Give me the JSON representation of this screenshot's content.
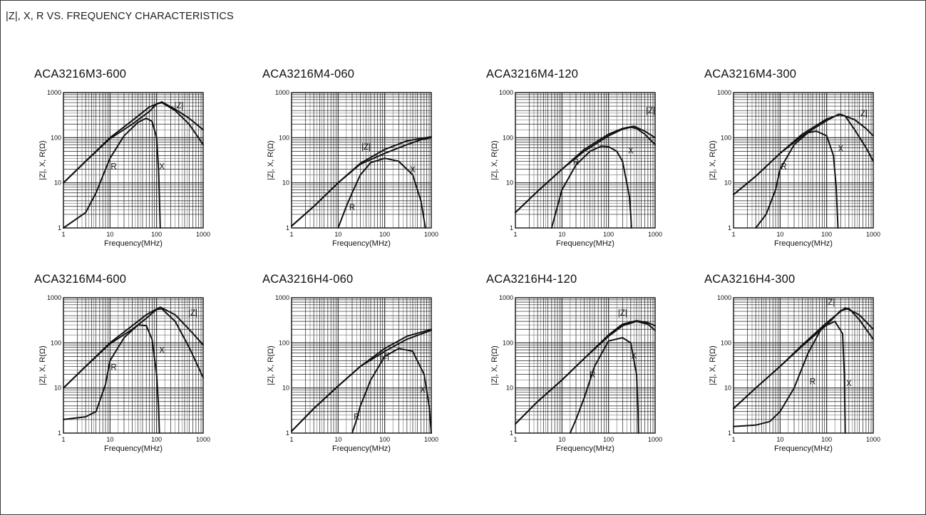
{
  "page": {
    "title": "|Z|, X, R VS. FREQUENCY CHARACTERISTICS"
  },
  "chart_data": [
    {
      "type": "line",
      "title": "ACA3216M3-600",
      "xlabel": "Frequency(MHz)",
      "ylabel": "|Z|, X, R(Ω)",
      "xscale": "log",
      "yscale": "log",
      "xlim": [
        1,
        1000
      ],
      "ylim": [
        1,
        1000
      ],
      "xticks": [
        "1",
        "10",
        "100",
        "1000"
      ],
      "yticks": [
        "1",
        "10",
        "100",
        "1000"
      ],
      "grid": true,
      "series": [
        {
          "name": "|Z|",
          "x": [
            1,
            3,
            10,
            30,
            70,
            130,
            250,
            500,
            1000
          ],
          "y": [
            10,
            30,
            100,
            240,
            480,
            620,
            430,
            270,
            150
          ]
        },
        {
          "name": "X",
          "x": [
            1,
            3,
            10,
            30,
            70,
            100,
            130,
            250,
            500,
            1000
          ],
          "y": [
            10,
            30,
            95,
            200,
            380,
            560,
            600,
            400,
            200,
            70
          ]
        },
        {
          "name": "R",
          "x": [
            1,
            3,
            5,
            10,
            20,
            40,
            60,
            80,
            100,
            110,
            115,
            120
          ],
          "y": [
            1,
            2.2,
            6,
            35,
            110,
            220,
            270,
            230,
            100,
            20,
            5,
            1
          ]
        }
      ],
      "annotations": [
        {
          "text": "|Z|",
          "x": 300,
          "y": 450
        },
        {
          "text": "R",
          "x": 12,
          "y": 20
        },
        {
          "text": "X",
          "x": 130,
          "y": 20
        }
      ]
    },
    {
      "type": "line",
      "title": "ACA3216M4-060",
      "xlabel": "Frequency(MHz)",
      "ylabel": "|Z|, X, R(Ω)",
      "xscale": "log",
      "yscale": "log",
      "xlim": [
        1,
        1000
      ],
      "ylim": [
        1,
        1000
      ],
      "xticks": [
        "1",
        "10",
        "100",
        "1000"
      ],
      "yticks": [
        "1",
        "10",
        "100",
        "1000"
      ],
      "grid": true,
      "series": [
        {
          "name": "|Z|",
          "x": [
            1,
            3,
            10,
            30,
            100,
            300,
            1000
          ],
          "y": [
            1.1,
            3,
            10,
            27,
            55,
            85,
            105
          ]
        },
        {
          "name": "X",
          "x": [
            1,
            3,
            10,
            30,
            100,
            300,
            600,
            1000
          ],
          "y": [
            1.1,
            3,
            10,
            26,
            45,
            70,
            90,
            100
          ]
        },
        {
          "name": "R",
          "x": [
            10,
            15,
            20,
            30,
            50,
            100,
            200,
            400,
            600,
            700,
            750
          ],
          "y": [
            1,
            3,
            6,
            15,
            28,
            35,
            30,
            15,
            4,
            1.5,
            1
          ]
        }
      ],
      "annotations": [
        {
          "text": "|Z|",
          "x": 40,
          "y": 55
        },
        {
          "text": "R",
          "x": 20,
          "y": 2.5
        },
        {
          "text": "X",
          "x": 400,
          "y": 17
        }
      ]
    },
    {
      "type": "line",
      "title": "ACA3216M4-120",
      "xlabel": "Frequency(MHz)",
      "ylabel": "|Z|, X, R(Ω)",
      "xscale": "log",
      "yscale": "log",
      "xlim": [
        1,
        1000
      ],
      "ylim": [
        1,
        1000
      ],
      "xticks": [
        "1",
        "10",
        "100",
        "1000"
      ],
      "yticks": [
        "1",
        "10",
        "100",
        "1000"
      ],
      "grid": true,
      "series": [
        {
          "name": "|Z|",
          "x": [
            1,
            3,
            10,
            30,
            100,
            200,
            350,
            600,
            1000
          ],
          "y": [
            2.2,
            6.5,
            20,
            55,
            120,
            160,
            180,
            140,
            100
          ]
        },
        {
          "name": "X",
          "x": [
            1,
            3,
            10,
            30,
            100,
            200,
            300,
            400,
            600,
            1000
          ],
          "y": [
            2.2,
            6.5,
            20,
            50,
            110,
            155,
            170,
            160,
            120,
            70
          ]
        },
        {
          "name": "R",
          "x": [
            6,
            8,
            10,
            20,
            40,
            70,
            100,
            150,
            200,
            280,
            300,
            310
          ],
          "y": [
            1,
            3,
            7,
            25,
            50,
            65,
            63,
            50,
            30,
            5,
            2,
            1
          ]
        }
      ],
      "annotations": [
        {
          "text": "|Z|",
          "x": 800,
          "y": 350
        },
        {
          "text": "R",
          "x": 20,
          "y": 25
        },
        {
          "text": "X",
          "x": 300,
          "y": 45
        }
      ]
    },
    {
      "type": "line",
      "title": "ACA3216M4-300",
      "xlabel": "Frequency(MHz)",
      "ylabel": "|Z|, X, R(Ω)",
      "xscale": "log",
      "yscale": "log",
      "xlim": [
        1,
        1000
      ],
      "ylim": [
        1,
        1000
      ],
      "xticks": [
        "1",
        "10",
        "100",
        "1000"
      ],
      "yticks": [
        "1",
        "10",
        "100",
        "1000"
      ],
      "grid": true,
      "series": [
        {
          "name": "|Z|",
          "x": [
            1,
            3,
            10,
            30,
            100,
            200,
            400,
            700,
            1000
          ],
          "y": [
            5.5,
            14,
            45,
            120,
            260,
            330,
            250,
            160,
            110
          ]
        },
        {
          "name": "X",
          "x": [
            1,
            3,
            10,
            30,
            100,
            180,
            250,
            400,
            700,
            1000
          ],
          "y": [
            5.5,
            14,
            45,
            110,
            240,
            330,
            300,
            150,
            60,
            30
          ]
        },
        {
          "name": "R",
          "x": [
            3,
            5,
            8,
            10,
            20,
            40,
            60,
            100,
            140,
            160,
            170,
            175
          ],
          "y": [
            1,
            2,
            7,
            20,
            70,
            130,
            140,
            110,
            40,
            8,
            2,
            1
          ]
        }
      ],
      "annotations": [
        {
          "text": "|Z|",
          "x": 600,
          "y": 300
        },
        {
          "text": "R",
          "x": 12,
          "y": 20
        },
        {
          "text": "X",
          "x": 200,
          "y": 50
        }
      ]
    },
    {
      "type": "line",
      "title": "ACA3216M4-600",
      "xlabel": "Frequency(MHz)",
      "ylabel": "|Z|, X, R(Ω)",
      "xscale": "log",
      "yscale": "log",
      "xlim": [
        1,
        1000
      ],
      "ylim": [
        1,
        1000
      ],
      "xticks": [
        "1",
        "10",
        "100",
        "1000"
      ],
      "yticks": [
        "1",
        "10",
        "100",
        "1000"
      ],
      "grid": true,
      "series": [
        {
          "name": "|Z|",
          "x": [
            1,
            3,
            10,
            30,
            60,
            120,
            250,
            500,
            1000
          ],
          "y": [
            10,
            30,
            100,
            240,
            420,
            620,
            420,
            200,
            90
          ]
        },
        {
          "name": "X",
          "x": [
            1,
            3,
            10,
            30,
            60,
            100,
            130,
            250,
            500,
            1000
          ],
          "y": [
            10,
            30,
            95,
            200,
            350,
            550,
            570,
            300,
            80,
            17
          ]
        },
        {
          "name": "R",
          "x": [
            1,
            3,
            5,
            8,
            10,
            20,
            40,
            60,
            80,
            100,
            110,
            115
          ],
          "y": [
            2,
            2.3,
            3,
            12,
            40,
            130,
            250,
            240,
            120,
            20,
            4,
            1
          ]
        }
      ],
      "annotations": [
        {
          "text": "|Z|",
          "x": 600,
          "y": 400
        },
        {
          "text": "R",
          "x": 12,
          "y": 25
        },
        {
          "text": "X",
          "x": 130,
          "y": 60
        }
      ]
    },
    {
      "type": "line",
      "title": "ACA3216H4-060",
      "xlabel": "Frequency(MHz)",
      "ylabel": "|Z|, X, R(Ω)",
      "xscale": "log",
      "yscale": "log",
      "xlim": [
        1,
        1000
      ],
      "ylim": [
        1,
        1000
      ],
      "xticks": [
        "1",
        "10",
        "100",
        "1000"
      ],
      "yticks": [
        "1",
        "10",
        "100",
        "1000"
      ],
      "grid": true,
      "series": [
        {
          "name": "|Z|",
          "x": [
            1,
            3,
            10,
            30,
            100,
            300,
            1000
          ],
          "y": [
            1.1,
            3.5,
            11,
            30,
            75,
            140,
            200
          ]
        },
        {
          "name": "X",
          "x": [
            1,
            3,
            10,
            30,
            100,
            300,
            1000
          ],
          "y": [
            1.1,
            3.5,
            11,
            30,
            65,
            120,
            190
          ]
        },
        {
          "name": "R",
          "x": [
            20,
            25,
            30,
            50,
            100,
            200,
            400,
            700,
            900,
            1000
          ],
          "y": [
            1,
            2,
            4,
            15,
            50,
            75,
            65,
            20,
            4,
            1
          ]
        }
      ],
      "annotations": [
        {
          "text": "|Z|",
          "x": 100,
          "y": 45
        },
        {
          "text": "R",
          "x": 25,
          "y": 2
        },
        {
          "text": "X",
          "x": 650,
          "y": 8
        }
      ]
    },
    {
      "type": "line",
      "title": "ACA3216H4-120",
      "xlabel": "Frequency(MHz)",
      "ylabel": "|Z|, X, R(Ω)",
      "xscale": "log",
      "yscale": "log",
      "xlim": [
        1,
        1000
      ],
      "ylim": [
        1,
        1000
      ],
      "xticks": [
        "1",
        "10",
        "100",
        "1000"
      ],
      "yticks": [
        "1",
        "10",
        "100",
        "1000"
      ],
      "grid": true,
      "series": [
        {
          "name": "|Z|",
          "x": [
            1,
            3,
            10,
            30,
            100,
            200,
            400,
            700,
            1000
          ],
          "y": [
            1.6,
            5,
            15,
            45,
            150,
            260,
            310,
            280,
            240
          ]
        },
        {
          "name": "X",
          "x": [
            1,
            3,
            10,
            30,
            100,
            200,
            400,
            700,
            1000
          ],
          "y": [
            1.6,
            5,
            15,
            45,
            140,
            240,
            300,
            260,
            190
          ]
        },
        {
          "name": "R",
          "x": [
            15,
            20,
            30,
            50,
            100,
            200,
            300,
            400,
            430,
            440
          ],
          "y": [
            1,
            2,
            6,
            30,
            110,
            130,
            100,
            20,
            3,
            1
          ]
        }
      ],
      "annotations": [
        {
          "text": "|Z|",
          "x": 200,
          "y": 400
        },
        {
          "text": "R",
          "x": 45,
          "y": 17
        },
        {
          "text": "X",
          "x": 350,
          "y": 45
        }
      ]
    },
    {
      "type": "line",
      "title": "ACA3216H4-300",
      "xlabel": "Frequency(MHz)",
      "ylabel": "|Z|, X, R(Ω)",
      "xscale": "log",
      "yscale": "log",
      "xlim": [
        1,
        1000
      ],
      "ylim": [
        1,
        1000
      ],
      "xticks": [
        "1",
        "10",
        "100",
        "1000"
      ],
      "yticks": [
        "1",
        "10",
        "100",
        "1000"
      ],
      "grid": true,
      "series": [
        {
          "name": "|Z|",
          "x": [
            1,
            3,
            10,
            30,
            100,
            250,
            500,
            1000
          ],
          "y": [
            3.5,
            10,
            30,
            90,
            280,
            600,
            420,
            200
          ]
        },
        {
          "name": "X",
          "x": [
            1,
            3,
            10,
            30,
            100,
            200,
            300,
            500,
            1000
          ],
          "y": [
            3.5,
            10,
            30,
            85,
            250,
            520,
            580,
            330,
            120
          ]
        },
        {
          "name": "R",
          "x": [
            1,
            3,
            6,
            10,
            20,
            40,
            80,
            150,
            220,
            240,
            250
          ],
          "y": [
            1.4,
            1.5,
            1.8,
            3,
            10,
            60,
            220,
            300,
            160,
            20,
            1
          ]
        }
      ],
      "annotations": [
        {
          "text": "|Z|",
          "x": 120,
          "y": 700
        },
        {
          "text": "R",
          "x": 50,
          "y": 12
        },
        {
          "text": "X",
          "x": 300,
          "y": 11
        }
      ]
    }
  ]
}
